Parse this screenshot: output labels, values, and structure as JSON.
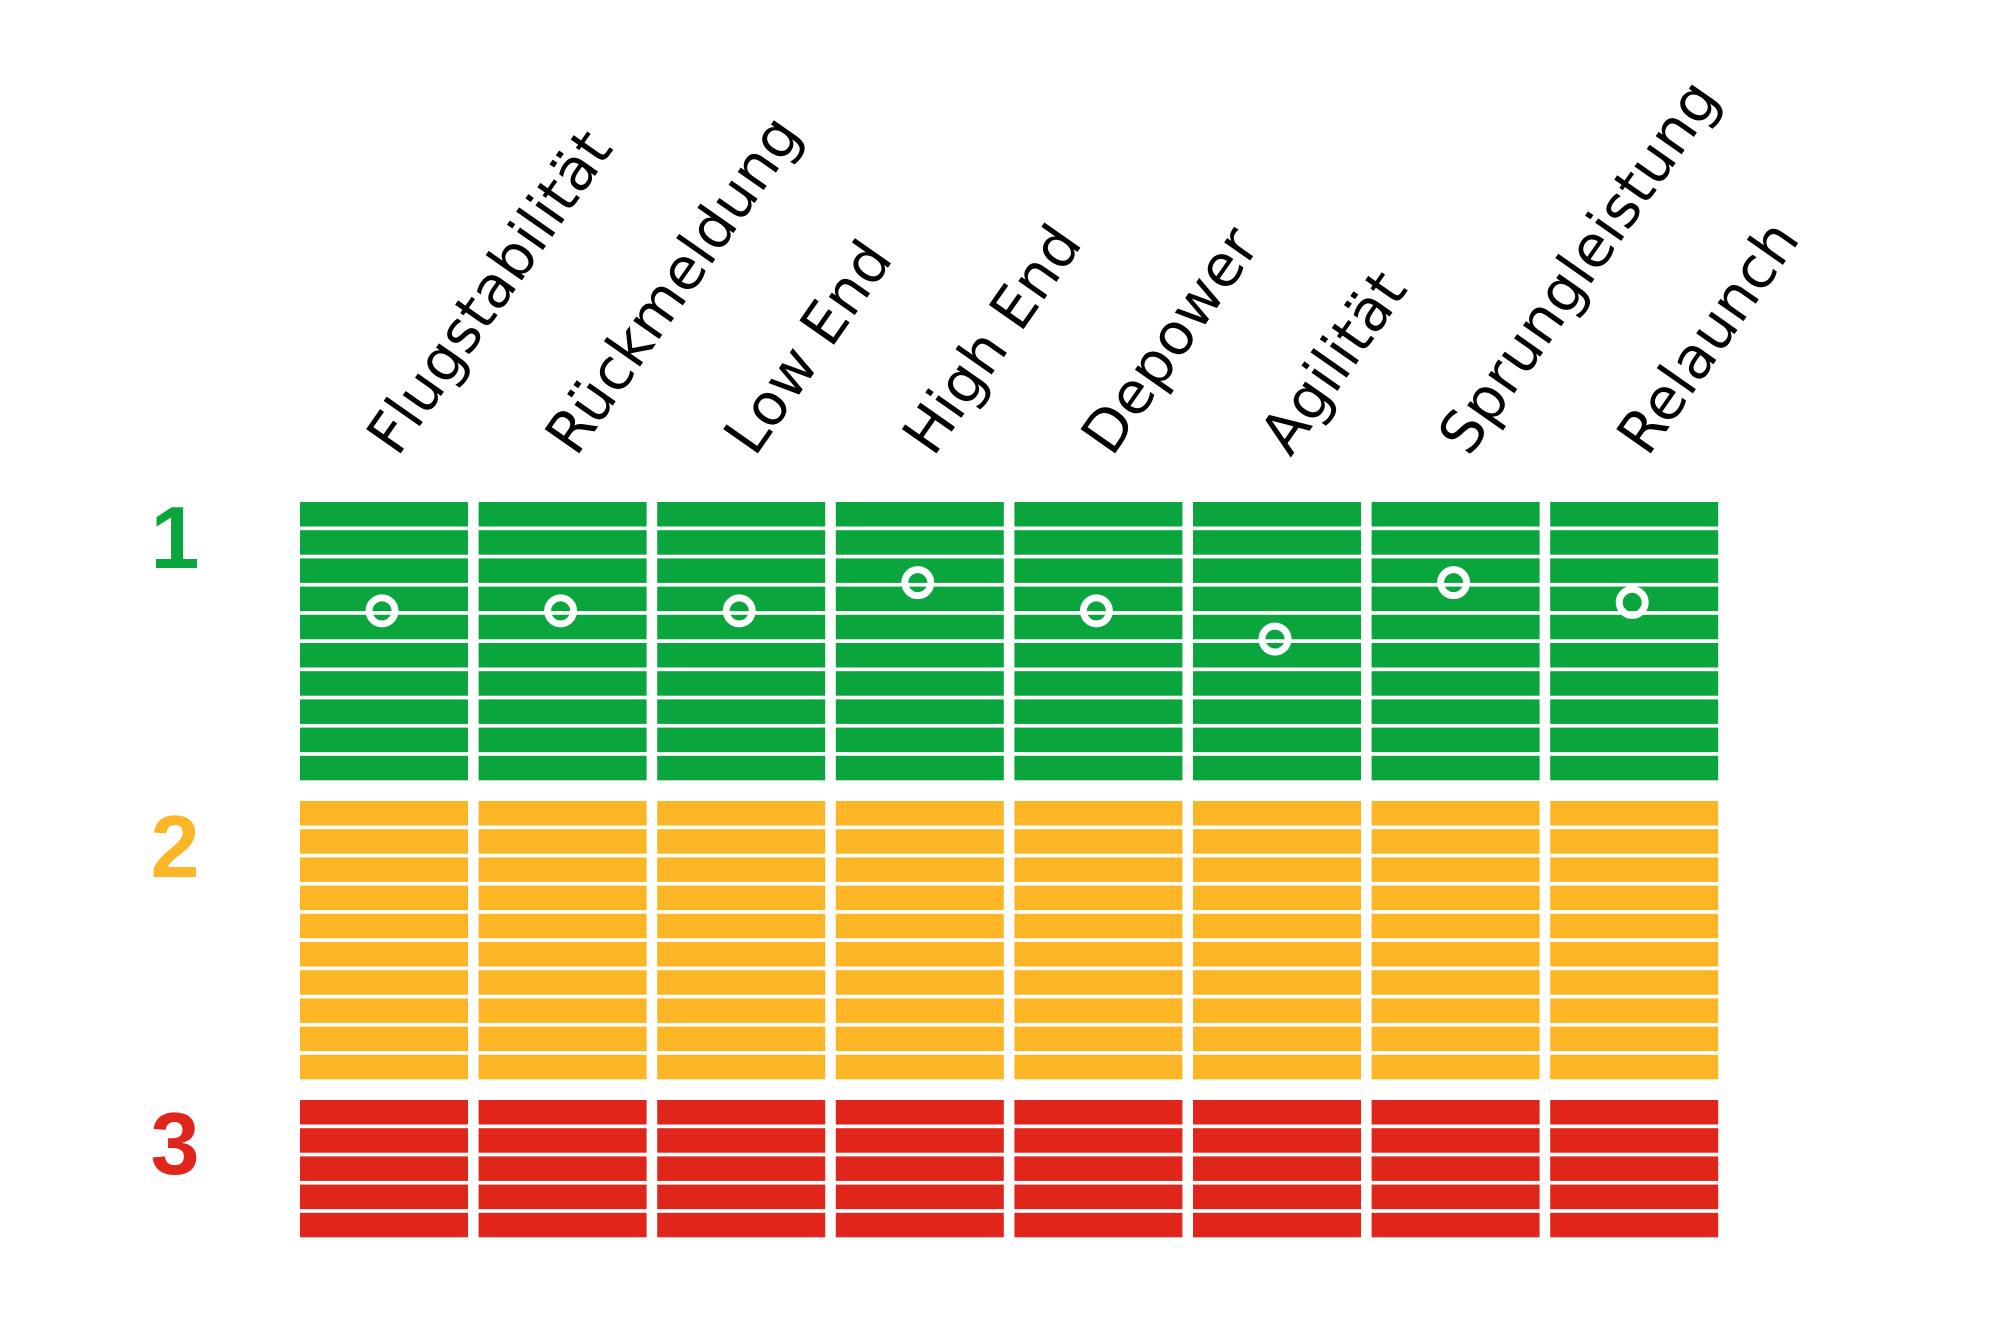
{
  "chart_data": {
    "type": "heatmap",
    "categories": [
      "Flugstabilität",
      "Rückmeldung",
      "Low End",
      "High End",
      "Depower",
      "Agilität",
      "Sprungleistung",
      "Relaunch"
    ],
    "zones": [
      {
        "label": "1",
        "color": "#0aa53c",
        "bars": 10
      },
      {
        "label": "2",
        "color": "#fcb525",
        "bars": 10
      },
      {
        "label": "3",
        "color": "#e0251b",
        "bars": 5
      }
    ],
    "series": [
      {
        "values": [
          3.4,
          3.4,
          3.4,
          2.4,
          3.4,
          4.4,
          2.4,
          3.1
        ]
      }
    ],
    "value_scale": "bar index from top of zone 1 (0) to bottom of zone 3 (25)",
    "marker_color": "#ffffff"
  }
}
